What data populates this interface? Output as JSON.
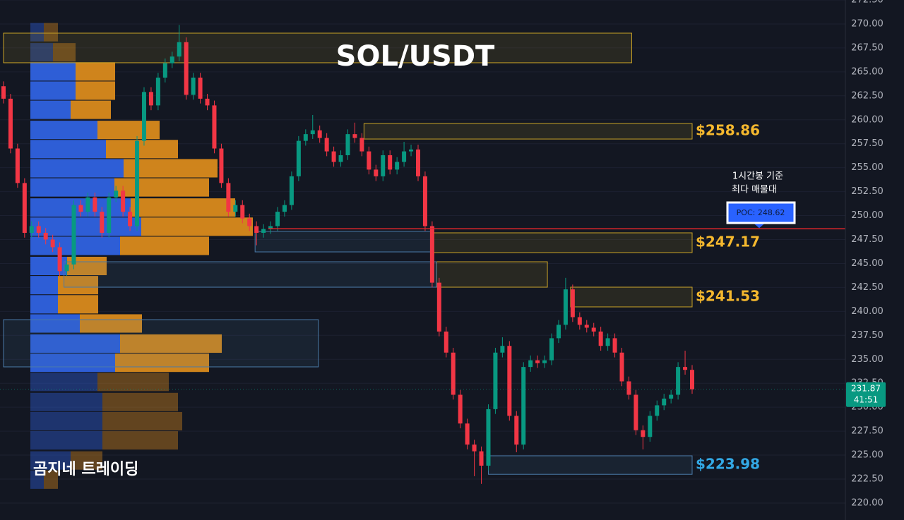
{
  "chart_data": {
    "type": "candlestick",
    "title": "SOL/USDT",
    "watermark": "곰지네 트레이딩",
    "annotation": [
      "1시간봉 기준",
      "최다 매물대"
    ],
    "ylim": [
      218.23,
      272.5
    ],
    "yticks": [
      {
        "value": 220,
        "label": "220.00"
      },
      {
        "value": 222.5,
        "label": "222.50"
      },
      {
        "value": 225,
        "label": "225.00"
      },
      {
        "value": 227.5,
        "label": "227.50"
      },
      {
        "value": 230,
        "label": "230.00"
      },
      {
        "value": 232.5,
        "label": "232.50"
      },
      {
        "value": 235,
        "label": "235.00"
      },
      {
        "value": 237.5,
        "label": "237.50"
      },
      {
        "value": 240,
        "label": "240.00"
      },
      {
        "value": 242.5,
        "label": "242.50"
      },
      {
        "value": 245,
        "label": "245.00"
      },
      {
        "value": 247.5,
        "label": "247.50"
      },
      {
        "value": 250,
        "label": "250.00"
      },
      {
        "value": 252.5,
        "label": "252.50"
      },
      {
        "value": 255,
        "label": "255.00"
      },
      {
        "value": 257.5,
        "label": "257.50"
      },
      {
        "value": 260,
        "label": "260.00"
      },
      {
        "value": 262.5,
        "label": "262.50"
      },
      {
        "value": 265,
        "label": "265.00"
      },
      {
        "value": 267.5,
        "label": "267.50"
      },
      {
        "value": 270,
        "label": "270.00"
      },
      {
        "value": 272.5,
        "label": "272.50"
      }
    ],
    "grid": true,
    "up_color": "#089981",
    "down_color": "#f23645",
    "open": [
      263.5,
      262.2,
      257.0,
      253.4,
      248.2,
      248.9,
      248.2,
      247.5,
      246.7,
      244.2,
      244.9,
      251.1,
      250.4,
      251.9,
      250.4,
      248.2,
      251.9,
      252.6,
      250.4,
      248.9,
      257.8,
      262.9,
      261.5,
      264.4,
      265.9,
      266.6,
      268.1,
      262.6,
      264.4,
      262.2,
      261.5,
      257.0,
      253.4,
      250.4,
      251.1,
      249.7,
      248.9,
      248.2,
      248.6,
      248.9,
      250.4,
      251.1,
      254.1,
      257.8,
      258.5,
      258.9,
      258.1,
      256.7,
      255.6,
      256.3,
      258.5,
      258.1,
      256.7,
      254.8,
      254.1,
      256.3,
      254.8,
      255.6,
      256.7,
      256.9,
      254.1,
      248.9,
      243.0,
      237.9,
      235.7,
      231.3,
      228.3,
      226.1,
      225.4,
      223.9,
      229.8,
      235.7,
      236.4,
      229.1,
      226.1,
      234.2,
      234.9,
      234.6,
      234.9,
      237.2,
      238.6,
      242.3,
      239.4,
      238.6,
      238.3,
      237.9,
      236.4,
      237.2,
      235.7,
      232.7,
      231.3,
      227.6,
      226.9,
      229.1,
      230.2,
      230.9,
      231.3,
      234.2,
      233.9
    ],
    "high": [
      264.0,
      262.7,
      257.5,
      253.9,
      249.4,
      249.4,
      248.7,
      248.0,
      247.2,
      245.4,
      251.6,
      251.6,
      252.4,
      252.4,
      250.9,
      252.4,
      253.1,
      253.1,
      250.9,
      258.3,
      263.4,
      263.4,
      264.9,
      266.4,
      267.1,
      269.9,
      268.6,
      264.9,
      264.9,
      262.7,
      262.0,
      257.5,
      253.9,
      251.6,
      251.6,
      250.2,
      249.4,
      249.1,
      249.4,
      250.9,
      251.6,
      254.6,
      258.3,
      259.0,
      260.5,
      259.4,
      258.6,
      257.2,
      256.8,
      259.0,
      259.7,
      258.6,
      257.2,
      255.3,
      256.8,
      256.8,
      256.1,
      257.7,
      257.4,
      257.4,
      254.6,
      249.4,
      243.5,
      238.4,
      236.2,
      231.8,
      228.8,
      226.6,
      225.9,
      230.3,
      236.2,
      237.3,
      236.9,
      229.6,
      234.7,
      235.4,
      235.4,
      235.4,
      237.7,
      239.1,
      243.5,
      242.8,
      239.9,
      239.1,
      238.8,
      238.4,
      237.7,
      237.7,
      236.2,
      233.2,
      231.8,
      228.1,
      229.6,
      230.7,
      231.4,
      231.8,
      234.7,
      235.9,
      234.4
    ],
    "low": [
      261.7,
      256.5,
      252.9,
      247.7,
      247.7,
      247.7,
      247.0,
      246.2,
      243.7,
      243.7,
      244.4,
      249.9,
      249.9,
      249.9,
      247.7,
      247.7,
      251.4,
      249.9,
      248.4,
      248.4,
      257.3,
      261.0,
      261.0,
      263.9,
      265.4,
      266.1,
      262.1,
      262.1,
      261.7,
      261.0,
      256.5,
      252.9,
      249.9,
      249.9,
      249.2,
      248.4,
      246.9,
      247.7,
      248.1,
      248.4,
      249.9,
      250.6,
      253.6,
      257.3,
      258.0,
      257.6,
      256.2,
      255.1,
      255.1,
      255.8,
      257.6,
      256.2,
      254.3,
      253.6,
      253.6,
      254.3,
      254.3,
      255.1,
      256.2,
      253.6,
      248.4,
      242.5,
      237.4,
      235.2,
      230.8,
      227.8,
      225.6,
      222.8,
      222.0,
      223.4,
      229.3,
      235.2,
      228.6,
      225.3,
      225.6,
      233.7,
      234.1,
      234.1,
      234.4,
      236.7,
      238.1,
      238.9,
      238.1,
      237.8,
      237.4,
      235.9,
      235.9,
      235.2,
      232.2,
      230.8,
      227.1,
      225.6,
      226.4,
      228.6,
      229.7,
      230.4,
      230.8,
      233.4,
      231.4
    ],
    "close": [
      262.2,
      257.0,
      253.4,
      248.2,
      248.9,
      248.2,
      247.5,
      246.7,
      244.2,
      244.9,
      251.1,
      250.4,
      251.9,
      250.4,
      248.2,
      251.9,
      252.6,
      250.4,
      248.9,
      257.8,
      262.9,
      261.5,
      264.4,
      265.9,
      266.6,
      268.1,
      262.6,
      264.4,
      262.2,
      261.5,
      257.0,
      253.4,
      250.4,
      251.1,
      249.7,
      248.9,
      248.2,
      248.6,
      248.9,
      250.4,
      251.1,
      254.1,
      257.8,
      258.5,
      258.9,
      258.1,
      256.7,
      255.6,
      256.3,
      258.5,
      258.1,
      256.7,
      254.8,
      254.1,
      256.3,
      254.8,
      255.6,
      256.7,
      256.9,
      254.1,
      248.9,
      243.0,
      237.9,
      235.7,
      231.3,
      228.3,
      226.1,
      225.4,
      223.9,
      229.8,
      235.7,
      236.4,
      229.1,
      226.1,
      234.2,
      234.9,
      234.6,
      234.9,
      237.2,
      238.6,
      242.3,
      239.4,
      238.6,
      238.3,
      237.9,
      236.4,
      237.2,
      235.7,
      232.7,
      231.3,
      227.6,
      226.9,
      229.1,
      230.2,
      230.9,
      231.3,
      234.2,
      233.9,
      231.87
    ],
    "last_price": 231.87,
    "countdown": "41:51",
    "poc": {
      "value": 248.62,
      "label": "POC: 248.62"
    },
    "volume_profile": {
      "levels": [
        270.1,
        268.0,
        266.0,
        264.0,
        262.0,
        259.9,
        257.9,
        255.9,
        253.9,
        251.8,
        249.8,
        247.8,
        245.7,
        243.7,
        241.7,
        239.7,
        237.6,
        235.6,
        233.6,
        231.5,
        229.5,
        227.5,
        225.4,
        223.4
      ],
      "step": 2.03,
      "buy": [
        19,
        32,
        64,
        64,
        57,
        95,
        107,
        132,
        119,
        142,
        157,
        127,
        52,
        39,
        39,
        70,
        127,
        120,
        95,
        102,
        102,
        102,
        57,
        19
      ],
      "sell": [
        20,
        32,
        56,
        56,
        57,
        88,
        102,
        133,
        134,
        148,
        158,
        126,
        56,
        57,
        57,
        88,
        144,
        133,
        101,
        107,
        113,
        107,
        45,
        20
      ],
      "value_area": [
        233.6,
        266.0
      ],
      "buy_color": "#2f62e0",
      "sell_color": "#d98a1c"
    },
    "zones": [
      {
        "kind": "supply",
        "top": 269.04,
        "bottom": 265.95,
        "from": 0,
        "to": 89.4
      },
      {
        "kind": "supply",
        "top": 259.61,
        "bottom": 257.99,
        "from": 51.3,
        "to": 98,
        "label": "$258.86"
      },
      {
        "kind": "supply",
        "top": 248.2,
        "bottom": 246.14,
        "from": 61.1,
        "to": 98,
        "label": "$247.17"
      },
      {
        "kind": "supply",
        "top": 245.18,
        "bottom": 242.53,
        "from": 61.6,
        "to": 77.4
      },
      {
        "kind": "supply",
        "top": 242.53,
        "bottom": 240.47,
        "from": 80.7,
        "to": 98,
        "label": "$241.53"
      },
      {
        "kind": "demand",
        "top": 248.35,
        "bottom": 246.21,
        "from": 35.8,
        "to": 61.1
      },
      {
        "kind": "demand",
        "top": 245.18,
        "bottom": 242.53,
        "from": 8.6,
        "to": 61.6
      },
      {
        "kind": "demand",
        "top": 239.14,
        "bottom": 234.21,
        "from": 0,
        "to": 44.8
      },
      {
        "kind": "demand",
        "top": 224.93,
        "bottom": 223.0,
        "from": 69,
        "to": 98,
        "label": "$223.98"
      }
    ]
  }
}
